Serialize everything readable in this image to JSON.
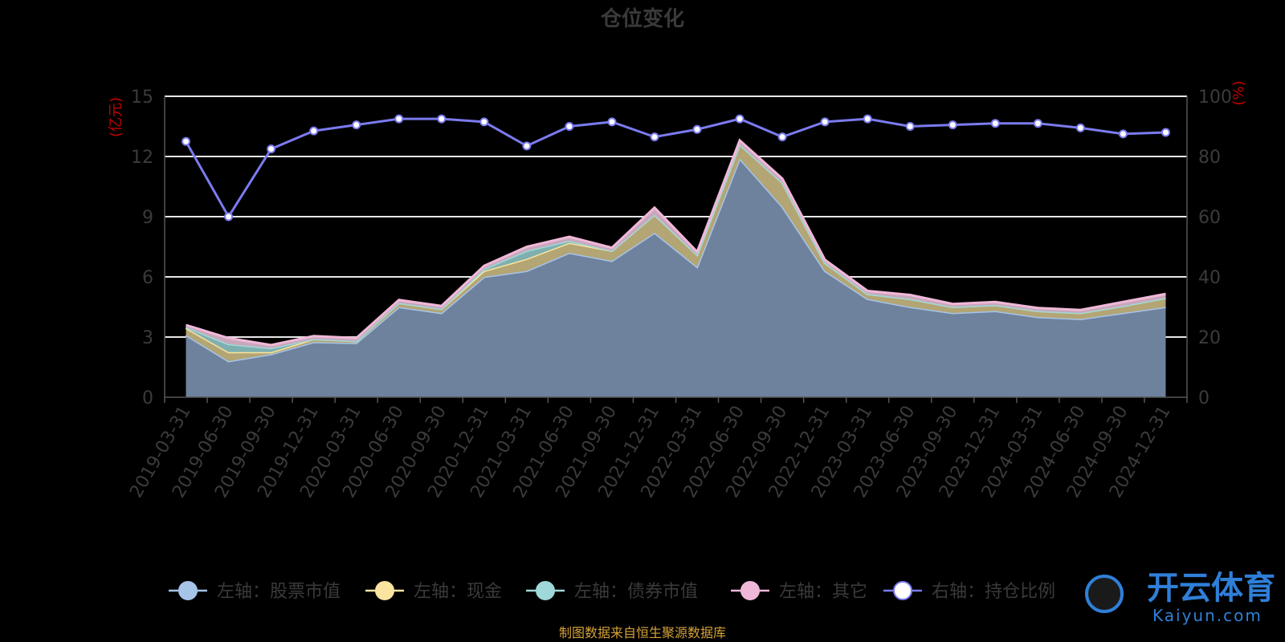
{
  "chart_data": {
    "type": "area",
    "title": "仓位变化",
    "left_unit": "(亿元)",
    "right_unit": "(%)",
    "categories": [
      "2019-03-31",
      "2019-06-30",
      "2019-09-30",
      "2019-12-31",
      "2020-03-31",
      "2020-06-30",
      "2020-09-30",
      "2020-12-31",
      "2021-03-31",
      "2021-06-30",
      "2021-09-30",
      "2021-12-31",
      "2022-03-31",
      "2022-06-30",
      "2022-09-30",
      "2022-12-31",
      "2023-03-31",
      "2023-06-30",
      "2023-09-30",
      "2023-12-31",
      "2024-03-31",
      "2024-06-30",
      "2024-09-30",
      "2024-12-31"
    ],
    "left_axis": {
      "min": 0,
      "max": 15,
      "ticks": [
        "0",
        "3",
        "6",
        "9",
        "12",
        "15"
      ]
    },
    "right_axis": {
      "min": 0,
      "max": 100,
      "ticks": [
        "0",
        "20",
        "40",
        "60",
        "80",
        "100"
      ]
    },
    "grid": true,
    "stacked_series": [
      {
        "name": "左轴：股票市值",
        "color": "#a6c3e8",
        "values": [
          3.1,
          1.8,
          2.15,
          2.75,
          2.7,
          4.5,
          4.2,
          6.0,
          6.3,
          7.2,
          6.8,
          8.2,
          6.5,
          11.9,
          9.5,
          6.3,
          4.9,
          4.5,
          4.2,
          4.3,
          4.0,
          3.9,
          4.2,
          4.5
        ]
      },
      {
        "name": "左轴：现金",
        "color": "#fbe4a0",
        "values": [
          0.35,
          0.45,
          0.1,
          0.15,
          0.1,
          0.2,
          0.2,
          0.3,
          0.6,
          0.5,
          0.5,
          0.9,
          0.6,
          0.7,
          1.2,
          0.4,
          0.25,
          0.4,
          0.3,
          0.3,
          0.3,
          0.3,
          0.35,
          0.45
        ]
      },
      {
        "name": "左轴：债券市值",
        "color": "#9fd8d8",
        "values": [
          0.05,
          0.4,
          0.2,
          0.0,
          0.0,
          0.0,
          0.0,
          0.1,
          0.4,
          0.1,
          0.0,
          0.0,
          0.0,
          0.0,
          0.0,
          0.0,
          0.0,
          0.0,
          0.0,
          0.0,
          0.0,
          0.0,
          0.0,
          0.0
        ]
      },
      {
        "name": "左轴：其它",
        "color": "#f0b8d8",
        "values": [
          0.1,
          0.3,
          0.15,
          0.15,
          0.15,
          0.15,
          0.15,
          0.15,
          0.2,
          0.2,
          0.15,
          0.35,
          0.15,
          0.2,
          0.2,
          0.15,
          0.15,
          0.2,
          0.15,
          0.15,
          0.15,
          0.15,
          0.2,
          0.2
        ]
      }
    ],
    "line_series": {
      "name": "右轴：持仓比例",
      "color": "#7b7bf0",
      "values": [
        85,
        60,
        82.5,
        88.5,
        90.5,
        92.5,
        92.5,
        91.5,
        83.5,
        90.0,
        91.5,
        86.5,
        89.0,
        92.5,
        86.5,
        91.5,
        92.5,
        90.0,
        90.5,
        91.0,
        91.0,
        89.5,
        87.5,
        88.0
      ]
    },
    "legend_position": "bottom"
  },
  "source_text": "制图数据来自恒生聚源数据库",
  "watermark": {
    "cn": "开云体育",
    "en": "Kaiyun.com"
  }
}
